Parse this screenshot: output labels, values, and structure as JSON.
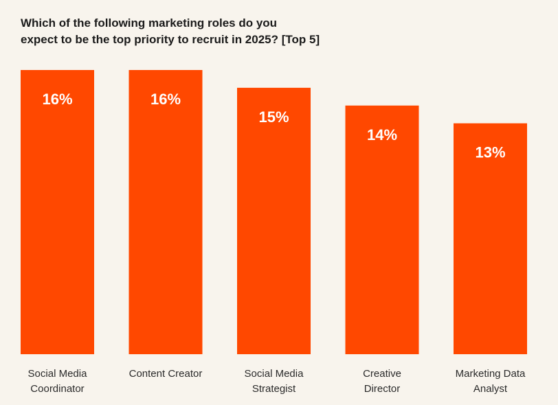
{
  "title": {
    "line1": "Which of the following marketing roles do you",
    "line2": "expect to be the top priority to recruit in 2025? [Top 5]"
  },
  "colors": {
    "background": "#f8f4ed",
    "bar": "#ff4800",
    "value_label": "#ffffff",
    "text": "#1a1a1a"
  },
  "chart_data": {
    "type": "bar",
    "title": "Which of the following marketing roles do you expect to be the top priority to recruit in 2025? [Top 5]",
    "categories": [
      [
        "Social Media",
        "Coordinator"
      ],
      [
        "Content Creator"
      ],
      [
        "Social Media",
        "Strategist"
      ],
      [
        "Creative",
        "Director"
      ],
      [
        "Marketing Data",
        "Analyst"
      ]
    ],
    "values": [
      16,
      16,
      15,
      14,
      13
    ],
    "value_labels": [
      "16%",
      "16%",
      "15%",
      "14%",
      "13%"
    ],
    "xlabel": "",
    "ylabel": "",
    "ylim": [
      0,
      16
    ],
    "grid": false,
    "legend": "none"
  }
}
